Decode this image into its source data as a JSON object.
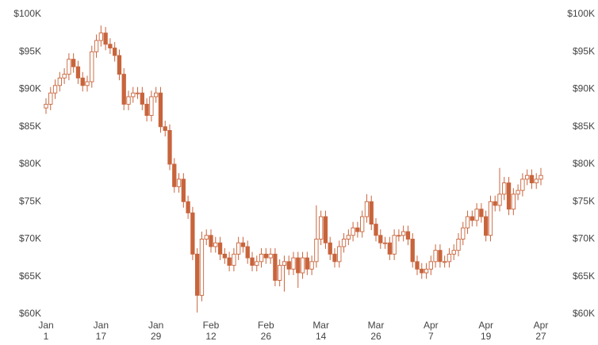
{
  "chart_data": {
    "type": "candlestick",
    "color": "#c8643c",
    "categories": [
      "Jan\n1",
      null,
      null,
      null,
      null,
      null,
      null,
      null,
      null,
      null,
      null,
      null,
      "Jan\n17",
      null,
      null,
      null,
      null,
      null,
      null,
      null,
      null,
      null,
      null,
      null,
      "Jan\n29",
      null,
      null,
      null,
      null,
      null,
      null,
      null,
      null,
      null,
      null,
      null,
      "Feb\n12",
      null,
      null,
      null,
      null,
      null,
      null,
      null,
      null,
      null,
      null,
      null,
      "Feb\n26",
      null,
      null,
      null,
      null,
      null,
      null,
      null,
      null,
      null,
      null,
      null,
      "Mar\n14",
      null,
      null,
      null,
      null,
      null,
      null,
      null,
      null,
      null,
      null,
      null,
      "Mar\n26",
      null,
      null,
      null,
      null,
      null,
      null,
      null,
      null,
      null,
      null,
      null,
      "Apr\n7",
      null,
      null,
      null,
      null,
      null,
      null,
      null,
      null,
      null,
      null,
      null,
      "Apr\n19",
      null,
      null,
      null,
      null,
      null,
      null,
      null,
      null,
      null,
      null,
      null,
      "Apr\n27"
    ],
    "open": [
      87500,
      88000,
      89500,
      90500,
      91500,
      92000,
      94000,
      93000,
      91500,
      90500,
      91000,
      95000,
      96500,
      97500,
      96000,
      95500,
      94500,
      92000,
      88000,
      89000,
      89500,
      89500,
      88000,
      86500,
      89000,
      89500,
      85000,
      84500,
      80000,
      77000,
      78000,
      75000,
      73500,
      68000,
      62500,
      70000,
      70500,
      69000,
      69500,
      68000,
      67500,
      66500,
      68000,
      69500,
      69000,
      67500,
      66500,
      67000,
      68000,
      67500,
      68000,
      64500,
      66500,
      67000,
      66000,
      67500,
      65500,
      67500,
      66000,
      67000,
      70000,
      73000,
      69500,
      68000,
      67000,
      69000,
      70000,
      70500,
      71500,
      71000,
      73000,
      75000,
      72000,
      70500,
      69500,
      69500,
      68000,
      70500,
      70500,
      71000,
      70000,
      67000,
      66000,
      65500,
      66000,
      67000,
      68500,
      67000,
      67000,
      68000,
      68500,
      70000,
      71500,
      73000,
      72500,
      74000,
      73000,
      70500,
      75000,
      74500,
      76000,
      77500,
      74000,
      76000,
      76500,
      78000,
      78500,
      77500,
      78000
    ],
    "high": [
      88800,
      90300,
      91300,
      92300,
      92800,
      94800,
      94800,
      93800,
      92300,
      91800,
      95800,
      97300,
      98500,
      98300,
      96800,
      96300,
      95300,
      92800,
      89800,
      90300,
      90300,
      90300,
      88800,
      89800,
      90300,
      90300,
      85800,
      85300,
      80800,
      78800,
      78800,
      75800,
      74300,
      68800,
      71000,
      71300,
      71300,
      70300,
      70300,
      68800,
      68300,
      68800,
      70300,
      70300,
      69800,
      68300,
      67800,
      68800,
      68800,
      68800,
      68800,
      67300,
      67800,
      67800,
      68300,
      68300,
      68300,
      68300,
      67800,
      74500,
      73800,
      73800,
      70300,
      68800,
      69800,
      70800,
      71300,
      72300,
      72300,
      73800,
      76000,
      75800,
      72800,
      71300,
      70300,
      70300,
      71300,
      71300,
      71800,
      71800,
      70800,
      67800,
      66800,
      66800,
      67800,
      69300,
      69300,
      67800,
      68800,
      69300,
      70800,
      72300,
      73800,
      73800,
      74800,
      74800,
      73800,
      75800,
      75800,
      79500,
      78300,
      78300,
      76800,
      77300,
      78800,
      79300,
      79300,
      78800,
      79500
    ],
    "low": [
      86700,
      87200,
      88700,
      89700,
      90700,
      91200,
      92200,
      90700,
      89700,
      89700,
      90200,
      94200,
      95700,
      95200,
      94700,
      93700,
      91200,
      87200,
      87200,
      88200,
      88700,
      87200,
      85700,
      85700,
      88200,
      84200,
      83700,
      79200,
      76200,
      76200,
      74200,
      72700,
      67200,
      60200,
      61700,
      69200,
      68200,
      68200,
      67200,
      66700,
      65700,
      65700,
      67200,
      68200,
      66700,
      65700,
      65700,
      66200,
      66700,
      66700,
      63700,
      63700,
      63000,
      65200,
      65200,
      63500,
      64700,
      65200,
      65200,
      66200,
      69200,
      68700,
      67200,
      66200,
      66200,
      68200,
      69200,
      69700,
      70200,
      70200,
      72200,
      71200,
      69700,
      68700,
      68700,
      67200,
      67200,
      69700,
      69700,
      69200,
      66200,
      65200,
      64700,
      64700,
      65200,
      66200,
      66200,
      66200,
      66200,
      67200,
      67700,
      69200,
      70700,
      71700,
      71700,
      72200,
      69700,
      69700,
      73700,
      73700,
      75200,
      73200,
      73200,
      75200,
      75700,
      77200,
      76700,
      76700,
      77200
    ],
    "close": [
      88000,
      89500,
      90500,
      91500,
      92000,
      94000,
      93000,
      91500,
      90500,
      91000,
      95000,
      96500,
      97500,
      96000,
      95500,
      94500,
      92000,
      88000,
      89000,
      89500,
      89500,
      88000,
      86500,
      89000,
      89500,
      85000,
      84500,
      80000,
      77000,
      78000,
      75000,
      73500,
      68000,
      62500,
      70000,
      70500,
      69000,
      69500,
      68000,
      67500,
      66500,
      68000,
      69500,
      69000,
      67500,
      66500,
      67000,
      68000,
      67500,
      68000,
      64500,
      66500,
      67000,
      66000,
      67500,
      65500,
      67500,
      66000,
      67000,
      70000,
      73000,
      69500,
      68000,
      67000,
      69000,
      70000,
      70500,
      71500,
      71000,
      73000,
      75000,
      72000,
      70500,
      69500,
      69500,
      68000,
      70500,
      70500,
      71000,
      70000,
      67000,
      66000,
      65500,
      66000,
      67000,
      68500,
      67000,
      67000,
      68000,
      68500,
      70000,
      71500,
      73000,
      72500,
      74000,
      73000,
      70500,
      75000,
      74500,
      76000,
      77500,
      74000,
      76000,
      76500,
      78000,
      78500,
      77500,
      78000,
      78500
    ],
    "ylim": [
      60000,
      100000
    ],
    "yticks": [
      {
        "value": 60000,
        "label": "$60K"
      },
      {
        "value": 65000,
        "label": "$65K"
      },
      {
        "value": 70000,
        "label": "$70K"
      },
      {
        "value": 75000,
        "label": "$75K"
      },
      {
        "value": 80000,
        "label": "$80K"
      },
      {
        "value": 85000,
        "label": "$85K"
      },
      {
        "value": 90000,
        "label": "$90K"
      },
      {
        "value": 95000,
        "label": "$95K"
      },
      {
        "value": 100000,
        "label": "$100K"
      }
    ],
    "y2lim": [
      60000,
      100000
    ],
    "y2ticks": [
      {
        "value": 60000,
        "label": "$60K"
      },
      {
        "value": 65000,
        "label": "$65K"
      },
      {
        "value": 70000,
        "label": "$70K"
      },
      {
        "value": 75000,
        "label": "$75K"
      },
      {
        "value": 80000,
        "label": "$80K"
      },
      {
        "value": 85000,
        "label": "$85K"
      },
      {
        "value": 90000,
        "label": "$90K"
      },
      {
        "value": 95000,
        "label": "$95K"
      },
      {
        "value": 100000,
        "label": "$100K"
      }
    ]
  }
}
